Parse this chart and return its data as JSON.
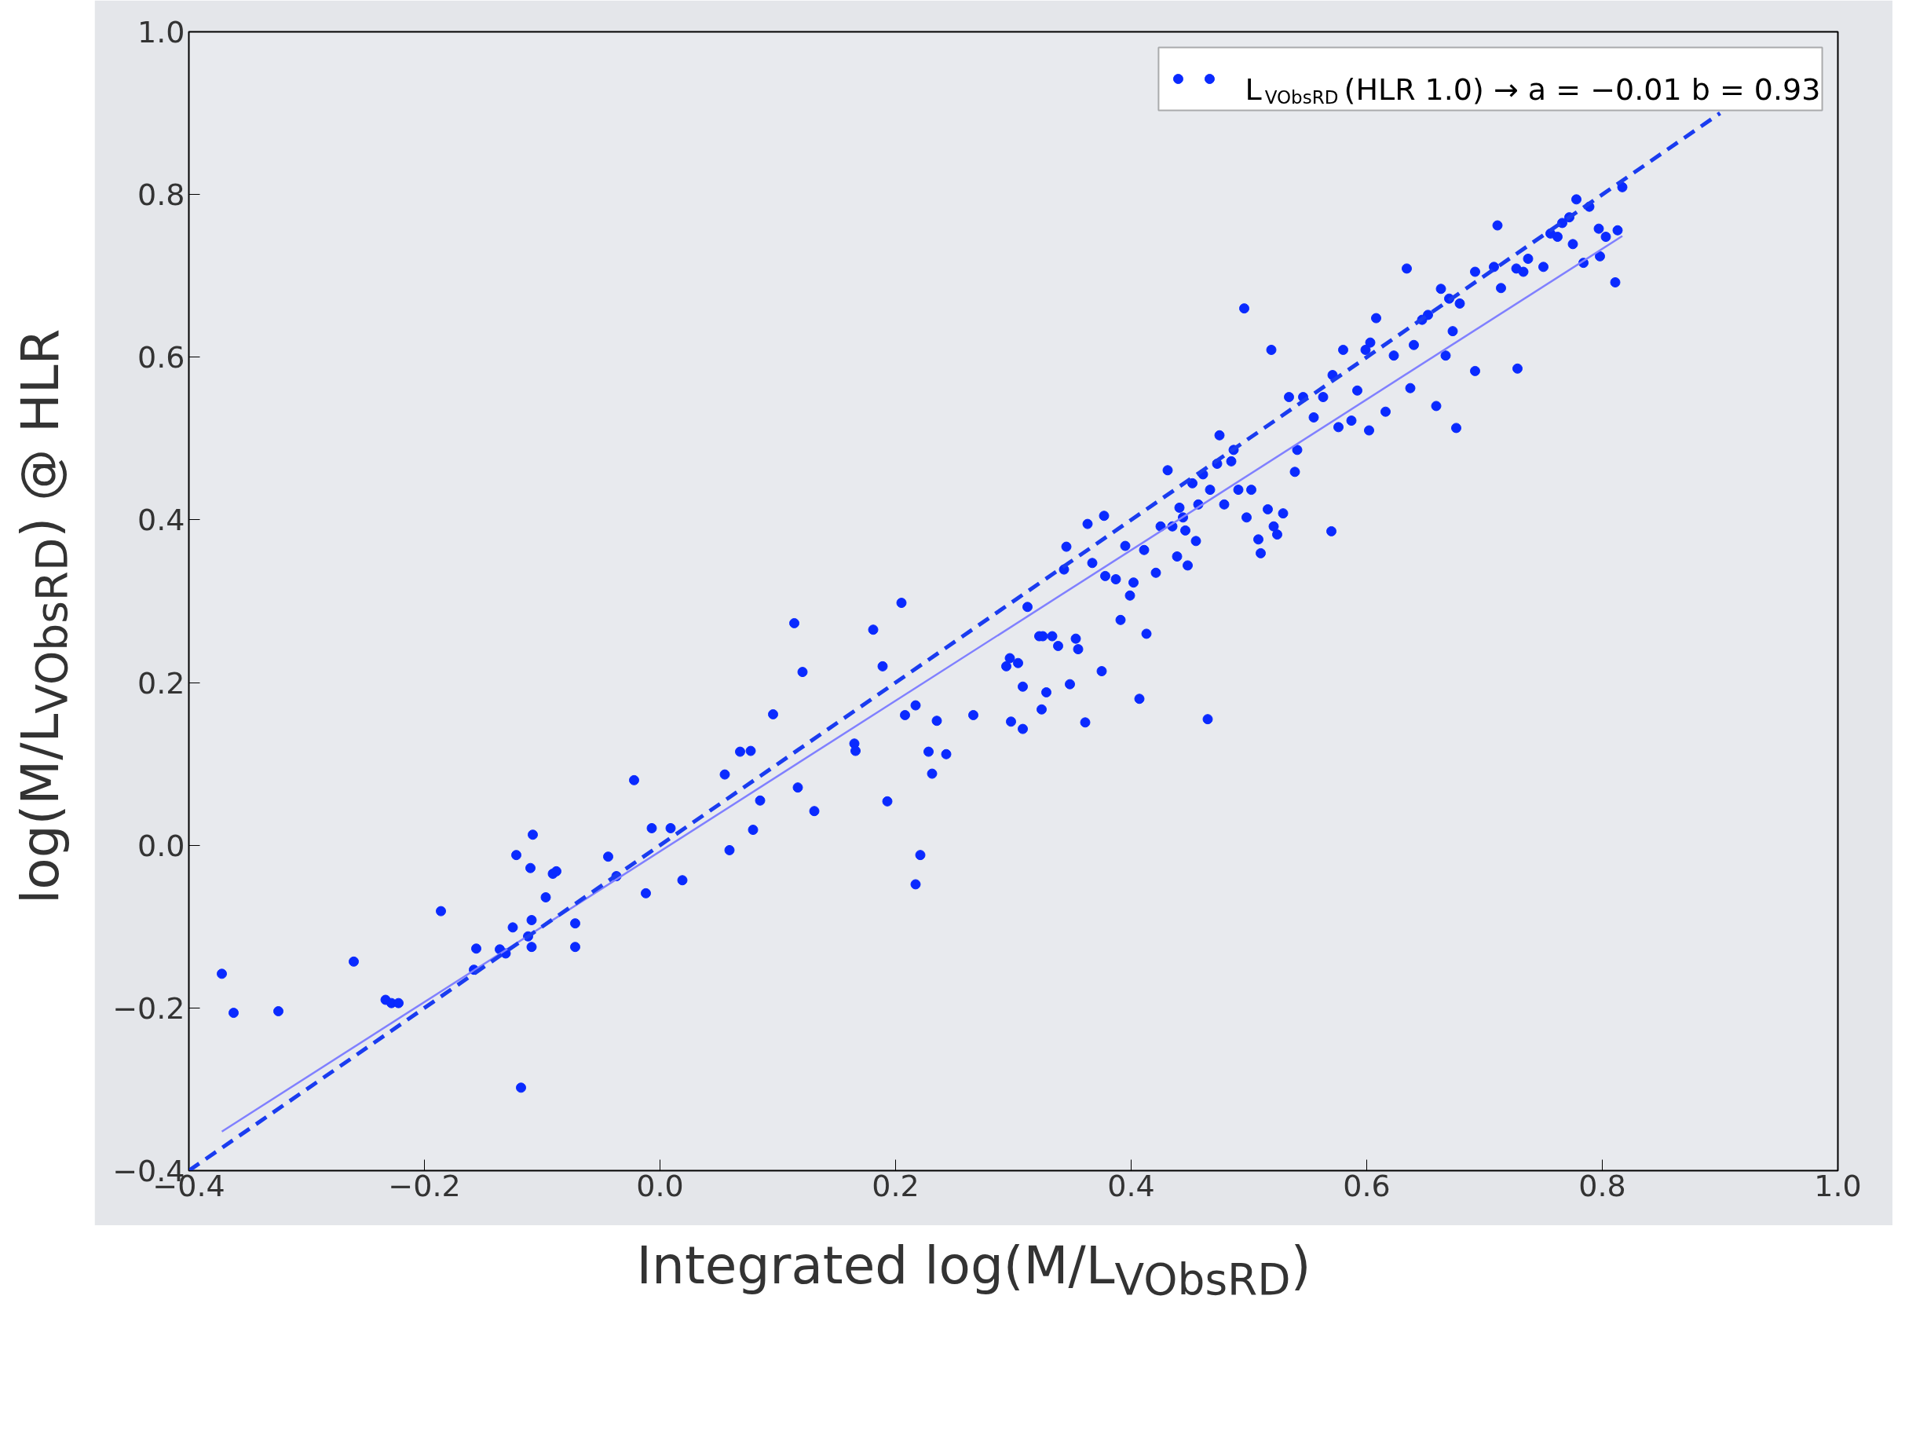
{
  "chart_data": {
    "type": "scatter",
    "xlabel": "Integrated log(M/L$_{VObsRD}$)",
    "ylabel": "log(M/L$_{VObsRD}$) @ HLR",
    "xlim": [
      -0.4,
      1.0
    ],
    "ylim": [
      -0.4,
      1.0
    ],
    "xticks": [
      {
        "value": -0.4,
        "label": "−0.4"
      },
      {
        "value": -0.2,
        "label": "−0.2"
      },
      {
        "value": 0.0,
        "label": "0.0"
      },
      {
        "value": 0.2,
        "label": "0.2"
      },
      {
        "value": 0.4,
        "label": "0.4"
      },
      {
        "value": 0.6,
        "label": "0.6"
      },
      {
        "value": 0.8,
        "label": "0.8"
      },
      {
        "value": 1.0,
        "label": "1.0"
      }
    ],
    "yticks": [
      {
        "value": -0.4,
        "label": "−0.4"
      },
      {
        "value": -0.2,
        "label": "−0.2"
      },
      {
        "value": 0.0,
        "label": "0.0"
      },
      {
        "value": 0.2,
        "label": "0.2"
      },
      {
        "value": 0.4,
        "label": "0.4"
      },
      {
        "value": 0.6,
        "label": "0.6"
      },
      {
        "value": 0.8,
        "label": "0.8"
      },
      {
        "value": 1.0,
        "label": "1.0"
      }
    ],
    "grid": false,
    "legend": "top right",
    "series": [
      {
        "name": "L$_{VObsRD}$ (HLR 1.0) → a = −0.01 b = 0.93",
        "marker": "circle",
        "color": "#0a2aff",
        "x": [
          -0.372,
          -0.362,
          -0.324,
          -0.26,
          -0.233,
          -0.228,
          -0.222,
          -0.186,
          -0.156,
          -0.158,
          -0.136,
          -0.131,
          -0.125,
          -0.122,
          -0.118,
          -0.112,
          -0.11,
          -0.108,
          -0.109,
          -0.109,
          -0.097,
          -0.091,
          -0.088,
          -0.072,
          -0.072,
          -0.044,
          -0.037,
          -0.022,
          -0.012,
          -0.007,
          0.009,
          0.019,
          0.055,
          0.059,
          0.068,
          0.077,
          0.079,
          0.085,
          0.096,
          0.114,
          0.117,
          0.121,
          0.131,
          0.165,
          0.166,
          0.181,
          0.189,
          0.193,
          0.205,
          0.208,
          0.217,
          0.217,
          0.221,
          0.228,
          0.231,
          0.235,
          0.243,
          0.266,
          0.294,
          0.297,
          0.298,
          0.304,
          0.308,
          0.308,
          0.312,
          0.322,
          0.324,
          0.325,
          0.328,
          0.333,
          0.338,
          0.343,
          0.345,
          0.348,
          0.353,
          0.355,
          0.361,
          0.363,
          0.367,
          0.375,
          0.377,
          0.378,
          0.387,
          0.391,
          0.395,
          0.399,
          0.402,
          0.407,
          0.411,
          0.413,
          0.421,
          0.425,
          0.431,
          0.435,
          0.439,
          0.441,
          0.444,
          0.446,
          0.448,
          0.452,
          0.455,
          0.457,
          0.461,
          0.465,
          0.467,
          0.473,
          0.475,
          0.479,
          0.485,
          0.487,
          0.491,
          0.496,
          0.498,
          0.502,
          0.508,
          0.51,
          0.516,
          0.519,
          0.521,
          0.524,
          0.529,
          0.534,
          0.539,
          0.541,
          0.546,
          0.555,
          0.563,
          0.57,
          0.571,
          0.576,
          0.58,
          0.587,
          0.592,
          0.599,
          0.602,
          0.603,
          0.608,
          0.616,
          0.623,
          0.634,
          0.637,
          0.64,
          0.647,
          0.652,
          0.659,
          0.663,
          0.667,
          0.67,
          0.673,
          0.676,
          0.679,
          0.692,
          0.692,
          0.708,
          0.711,
          0.714,
          0.728,
          0.727,
          0.733,
          0.737,
          0.75,
          0.756,
          0.762,
          0.766,
          0.772,
          0.775,
          0.778,
          0.784,
          0.789,
          0.797,
          0.798,
          0.803,
          0.811,
          0.813,
          0.817
        ],
        "values": [
          -0.158,
          -0.206,
          -0.204,
          -0.143,
          -0.19,
          -0.194,
          -0.194,
          -0.081,
          -0.127,
          -0.153,
          -0.128,
          -0.133,
          -0.101,
          -0.012,
          -0.298,
          -0.112,
          -0.028,
          0.013,
          -0.092,
          -0.125,
          -0.064,
          -0.035,
          -0.032,
          -0.096,
          -0.125,
          -0.014,
          -0.038,
          0.08,
          -0.059,
          0.021,
          0.021,
          -0.043,
          0.087,
          -0.006,
          0.115,
          0.116,
          0.019,
          0.055,
          0.161,
          0.273,
          0.071,
          0.213,
          0.042,
          0.125,
          0.116,
          0.265,
          0.22,
          0.054,
          0.298,
          0.16,
          0.172,
          -0.048,
          -0.012,
          0.115,
          0.088,
          0.153,
          0.112,
          0.16,
          0.22,
          0.23,
          0.152,
          0.224,
          0.195,
          0.143,
          0.293,
          0.257,
          0.167,
          0.257,
          0.188,
          0.257,
          0.245,
          0.339,
          0.367,
          0.198,
          0.254,
          0.241,
          0.151,
          0.395,
          0.347,
          0.214,
          0.405,
          0.331,
          0.327,
          0.277,
          0.368,
          0.307,
          0.323,
          0.18,
          0.363,
          0.26,
          0.335,
          0.392,
          0.461,
          0.392,
          0.355,
          0.415,
          0.403,
          0.387,
          0.344,
          0.445,
          0.374,
          0.419,
          0.456,
          0.155,
          0.437,
          0.469,
          0.504,
          0.419,
          0.472,
          0.486,
          0.437,
          0.66,
          0.403,
          0.437,
          0.376,
          0.359,
          0.413,
          0.609,
          0.392,
          0.382,
          0.408,
          0.551,
          0.459,
          0.486,
          0.551,
          0.526,
          0.551,
          0.386,
          0.578,
          0.514,
          0.609,
          0.522,
          0.559,
          0.609,
          0.51,
          0.618,
          0.648,
          0.533,
          0.602,
          0.709,
          0.562,
          0.615,
          0.646,
          0.652,
          0.54,
          0.684,
          0.602,
          0.672,
          0.632,
          0.513,
          0.666,
          0.583,
          0.705,
          0.711,
          0.762,
          0.685,
          0.586,
          0.709,
          0.705,
          0.721,
          0.711,
          0.752,
          0.748,
          0.765,
          0.772,
          0.739,
          0.794,
          0.716,
          0.785,
          0.758,
          0.724,
          0.748,
          0.692,
          0.756,
          0.809
        ]
      },
      {
        "type": "line",
        "line_style": "solid",
        "color": "#8080ff",
        "x": [
          -0.372,
          0.817
        ],
        "values": [
          -0.352,
          0.749
        ]
      },
      {
        "type": "line",
        "line_style": "dashed",
        "color": "#1a3cf0",
        "x": [
          -0.4,
          0.9
        ],
        "values": [
          -0.4,
          0.9
        ]
      }
    ]
  }
}
